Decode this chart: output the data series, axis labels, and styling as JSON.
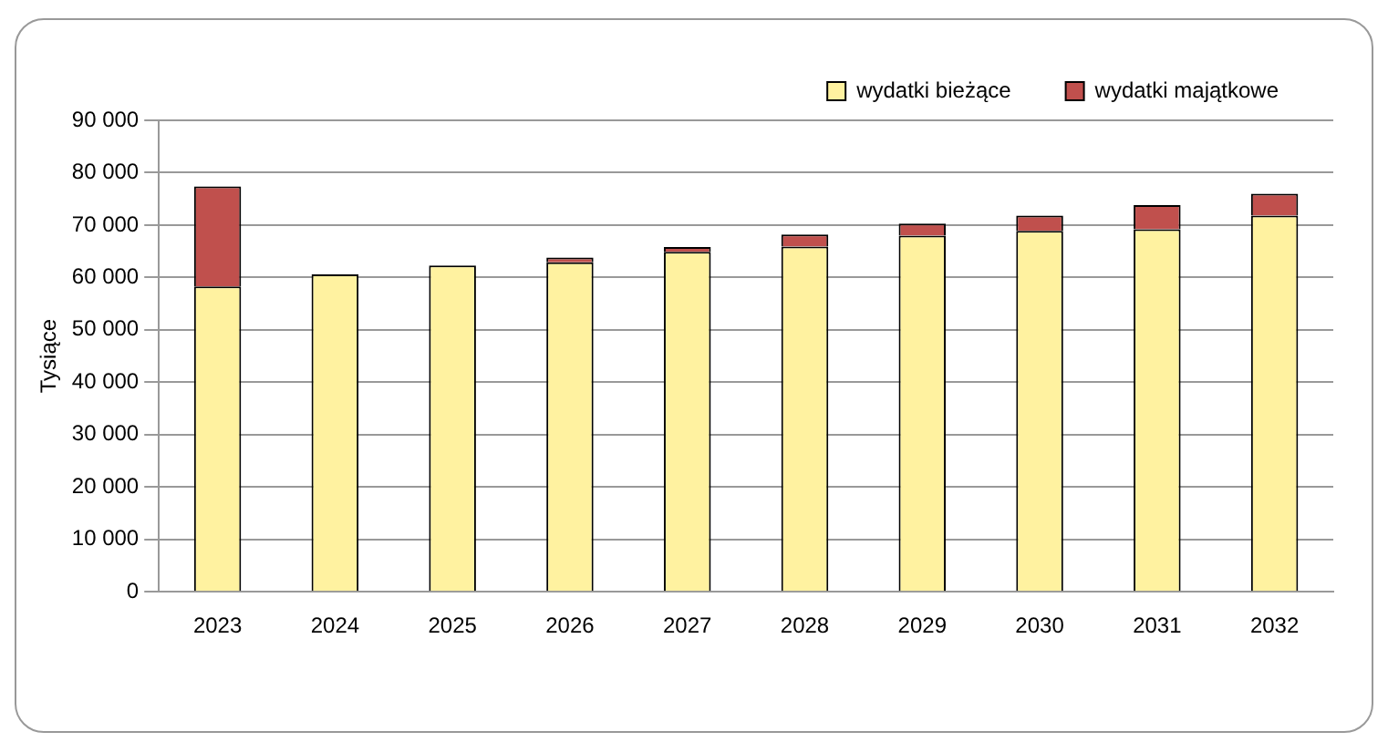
{
  "chart_data": {
    "type": "bar",
    "stacked": true,
    "ylabel": "Tysiące",
    "categories": [
      "2023",
      "2024",
      "2025",
      "2026",
      "2027",
      "2028",
      "2029",
      "2030",
      "2031",
      "2032"
    ],
    "series": [
      {
        "name": "wydatki bieżące",
        "color": "#fff2a0",
        "values": [
          58300,
          60600,
          62300,
          62900,
          64900,
          65900,
          68000,
          68900,
          69200,
          71800
        ]
      },
      {
        "name": "wydatki majątkowe",
        "color": "#c0504d",
        "values": [
          19100,
          0,
          0,
          900,
          900,
          2300,
          2300,
          2900,
          4600,
          4200
        ]
      }
    ],
    "ylim": [
      0,
      90000
    ],
    "yticks": [
      {
        "value": 0,
        "label": "0"
      },
      {
        "value": 10000,
        "label": "10 000"
      },
      {
        "value": 20000,
        "label": "20 000"
      },
      {
        "value": 30000,
        "label": "30 000"
      },
      {
        "value": 40000,
        "label": "40 000"
      },
      {
        "value": 50000,
        "label": "50 000"
      },
      {
        "value": 60000,
        "label": "60 000"
      },
      {
        "value": 70000,
        "label": "70 000"
      },
      {
        "value": 80000,
        "label": "80 000"
      },
      {
        "value": 90000,
        "label": "90 000"
      }
    ],
    "grid": "y",
    "legend": "top right"
  }
}
